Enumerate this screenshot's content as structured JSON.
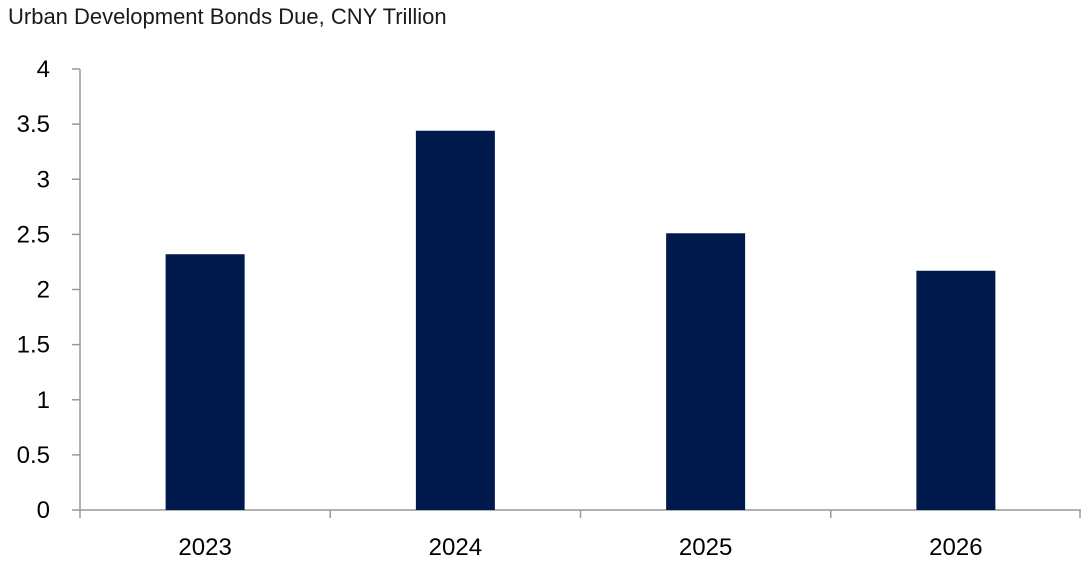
{
  "chart_data": {
    "type": "bar",
    "title": "Urban Development Bonds Due, CNY Trillion",
    "xlabel": "",
    "ylabel": "",
    "categories": [
      "2023",
      "2024",
      "2025",
      "2026"
    ],
    "values": [
      2.32,
      3.44,
      2.51,
      2.17
    ],
    "ylim": [
      0,
      4
    ],
    "yticks": [
      "0",
      "0.5",
      "1",
      "1.5",
      "2",
      "2.5",
      "3",
      "3.5",
      "4"
    ],
    "grid": false,
    "legend": "none",
    "colors": {
      "bar": "#001a4d",
      "axis": "#999999",
      "text": "#000000"
    }
  }
}
